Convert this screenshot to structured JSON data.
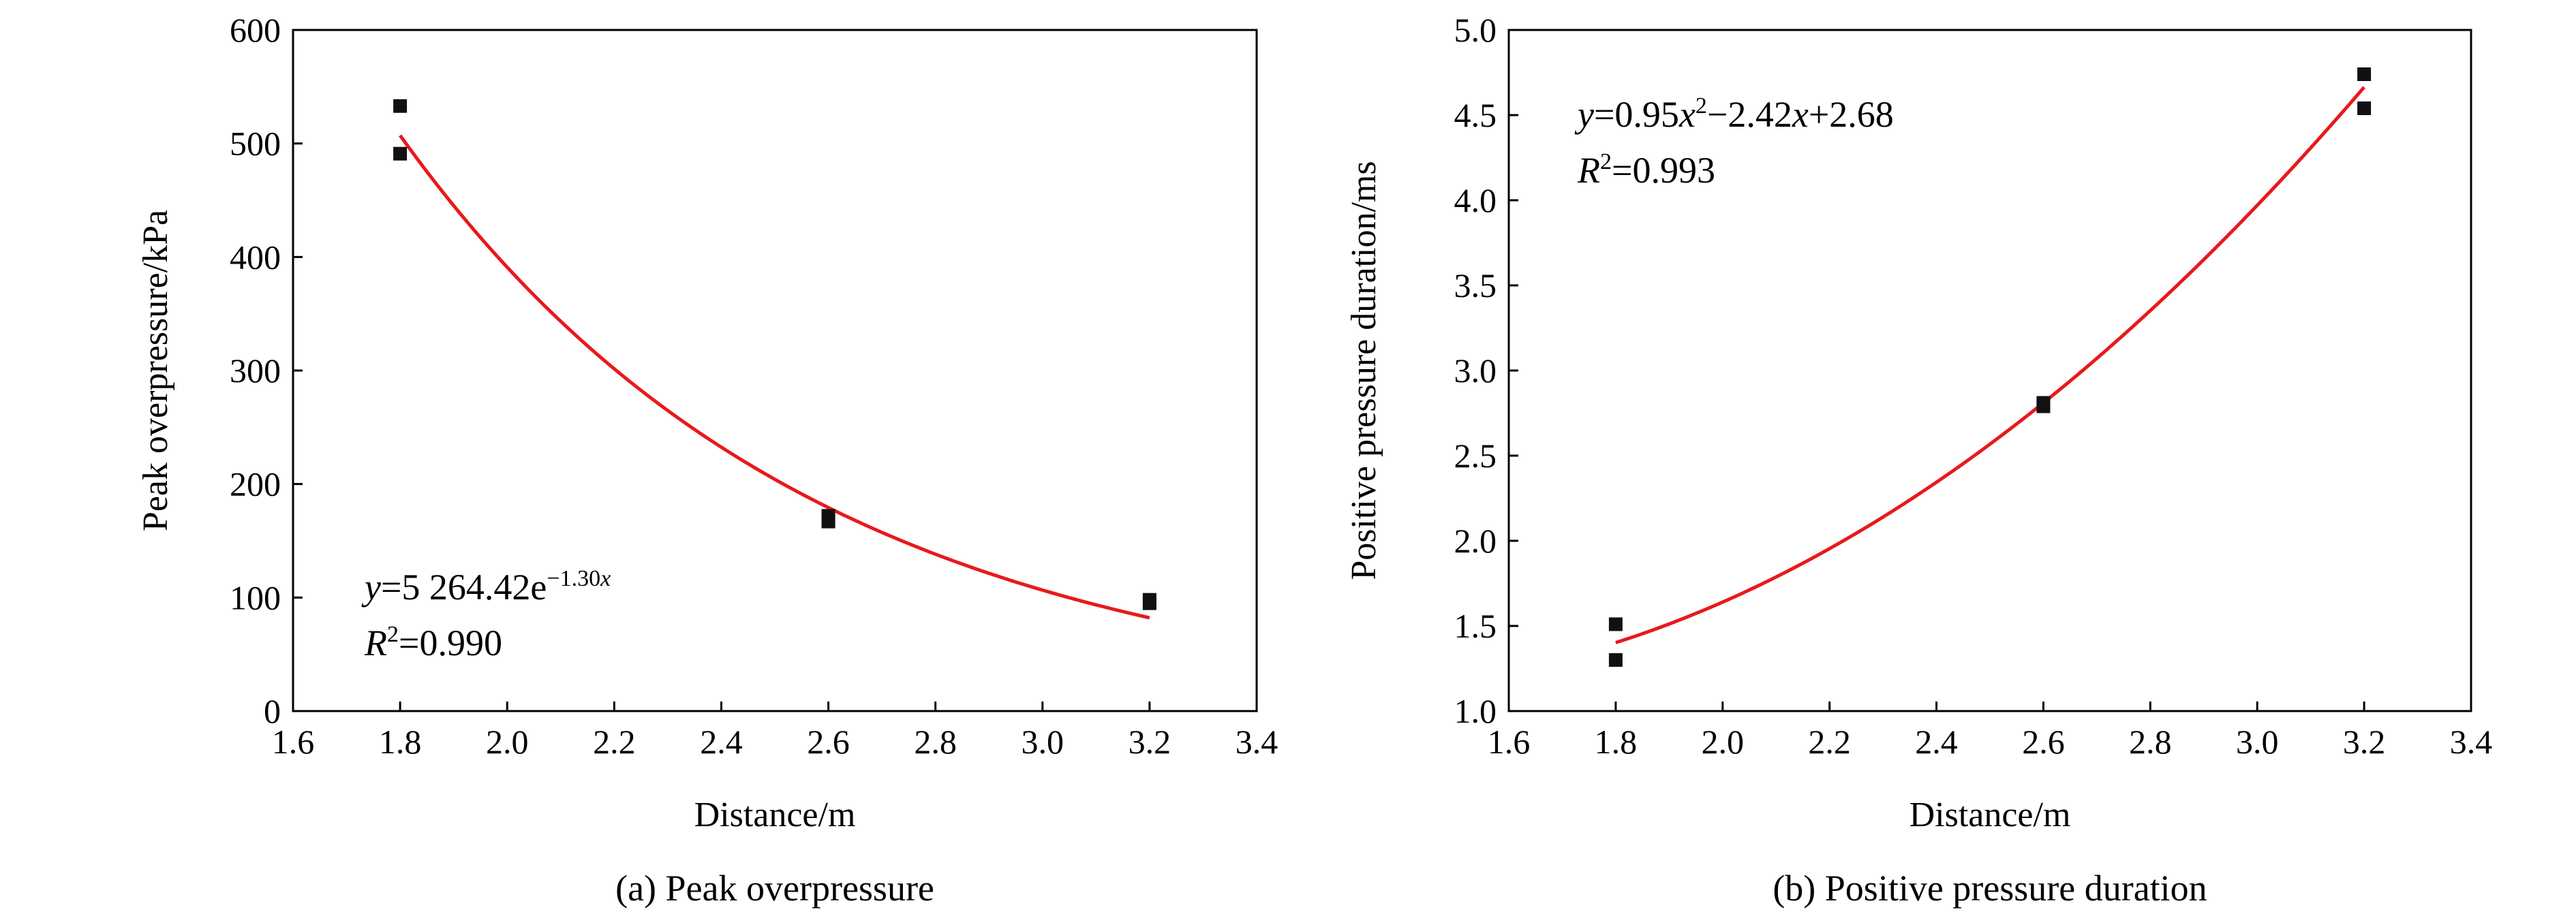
{
  "colors": {
    "fit_line": "#e8191c",
    "marker": "#111111",
    "axis": "#000000"
  },
  "chart_data": [
    {
      "type": "scatter",
      "panel_caption": "(a) Peak overpressure",
      "xlabel": "Distance/m",
      "ylabel": "Peak overpressure/kPa",
      "xlim": [
        1.6,
        3.4
      ],
      "ylim": [
        0,
        600
      ],
      "x_ticks": [
        "1.6",
        "1.8",
        "2.0",
        "2.2",
        "2.4",
        "2.6",
        "2.8",
        "3.0",
        "3.2",
        "3.4"
      ],
      "y_ticks": [
        "0",
        "100",
        "200",
        "300",
        "400",
        "500",
        "600"
      ],
      "grid": false,
      "points": [
        {
          "x": 1.8,
          "y": 533
        },
        {
          "x": 1.8,
          "y": 491
        },
        {
          "x": 2.6,
          "y": 172
        },
        {
          "x": 2.6,
          "y": 167
        },
        {
          "x": 3.2,
          "y": 98
        },
        {
          "x": 3.2,
          "y": 95
        }
      ],
      "fit": {
        "model": "exponential",
        "a": 5264.42,
        "b": -1.3,
        "x_range": [
          1.8,
          3.2
        ]
      },
      "equation_parts": [
        "y",
        "=5 264.42e",
        "−1.30",
        "x"
      ],
      "r2_parts": [
        "R",
        "2",
        "=0.990"
      ]
    },
    {
      "type": "scatter",
      "panel_caption": "(b) Positive pressure duration",
      "xlabel": "Distance/m",
      "ylabel": "Positive pressure duration/ms",
      "xlim": [
        1.6,
        3.4
      ],
      "ylim": [
        1.0,
        5.0
      ],
      "x_ticks": [
        "1.6",
        "1.8",
        "2.0",
        "2.2",
        "2.4",
        "2.6",
        "2.8",
        "3.0",
        "3.2",
        "3.4"
      ],
      "y_ticks": [
        "1.0",
        "1.5",
        "2.0",
        "2.5",
        "3.0",
        "3.5",
        "4.0",
        "4.5",
        "5.0"
      ],
      "grid": false,
      "points": [
        {
          "x": 1.8,
          "y": 1.51
        },
        {
          "x": 1.8,
          "y": 1.3
        },
        {
          "x": 2.6,
          "y": 2.81
        },
        {
          "x": 2.6,
          "y": 2.79
        },
        {
          "x": 3.2,
          "y": 4.74
        },
        {
          "x": 3.2,
          "y": 4.54
        }
      ],
      "fit": {
        "model": "quadratic",
        "coefficients": [
          0.95,
          -2.42,
          2.68
        ],
        "x_range": [
          1.8,
          3.2
        ]
      },
      "equation_parts": [
        "y",
        "=0.95",
        "x",
        "2",
        "−2.42",
        "x",
        "+2.68"
      ],
      "r2_parts": [
        "R",
        "2",
        "=0.993"
      ]
    }
  ]
}
